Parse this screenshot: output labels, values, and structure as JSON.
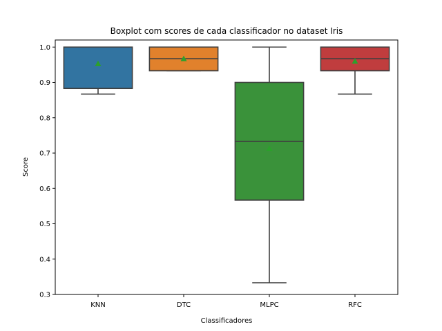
{
  "chart_data": {
    "type": "boxplot",
    "title": "Boxplot com scores de cada classificador no dataset Iris",
    "xlabel": "Classificadores",
    "ylabel": "Score",
    "ylim": [
      0.3,
      1.02
    ],
    "yticks": [
      0.3,
      0.4,
      0.5,
      0.6,
      0.7,
      0.8,
      0.9,
      1.0
    ],
    "ytick_labels": [
      "0.3",
      "0.4",
      "0.5",
      "0.6",
      "0.7",
      "0.8",
      "0.9",
      "1.0"
    ],
    "grid": false,
    "categories": [
      "KNN",
      "DTC",
      "MLPC",
      "RFC"
    ],
    "boxes": [
      {
        "label": "KNN",
        "color": "#3274a1",
        "whisker_low": 0.867,
        "q1": 0.883,
        "median": 1.0,
        "q3": 1.0,
        "whisker_high": 1.0,
        "mean": 0.953
      },
      {
        "label": "DTC",
        "color": "#e1812c",
        "whisker_low": 0.933,
        "q1": 0.933,
        "median": 0.967,
        "q3": 1.0,
        "whisker_high": 1.0,
        "mean": 0.967
      },
      {
        "label": "MLPC",
        "color": "#3a923a",
        "whisker_low": 0.333,
        "q1": 0.567,
        "median": 0.733,
        "q3": 0.9,
        "whisker_high": 1.0,
        "mean": 0.713
      },
      {
        "label": "RFC",
        "color": "#c03d3e",
        "whisker_low": 0.867,
        "q1": 0.933,
        "median": 0.967,
        "q3": 1.0,
        "whisker_high": 1.0,
        "mean": 0.96
      }
    ],
    "mean_marker_color": "#2ca02c",
    "line_color": "#3f3f3f"
  }
}
